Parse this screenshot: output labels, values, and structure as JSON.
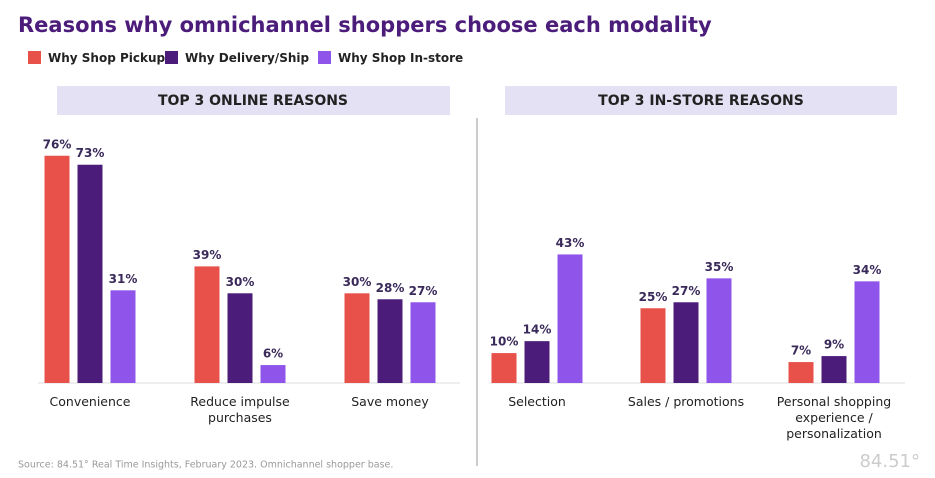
{
  "chart_data": {
    "type": "bar",
    "title": "Reasons why omnichannel shoppers choose each modality",
    "series": [
      {
        "name": "Why Shop Pickup",
        "color": "#e8504a"
      },
      {
        "name": "Why Delivery/Ship",
        "color": "#4b1c7a"
      },
      {
        "name": "Why Shop In-store",
        "color": "#8f55ea"
      }
    ],
    "panels": [
      {
        "title": "TOP 3 ONLINE REASONS",
        "categories": [
          "Convenience",
          "Reduce impulse purchases",
          "Save money"
        ],
        "series": [
          {
            "values": [
              76,
              39,
              30
            ],
            "value_labels": [
              "76%",
              "39%",
              "30%"
            ]
          },
          {
            "values": [
              73,
              30,
              28
            ],
            "value_labels": [
              "73%",
              "30%",
              "28%"
            ]
          },
          {
            "values": [
              31,
              6,
              27
            ],
            "value_labels": [
              "31%",
              "6%",
              "27%"
            ]
          }
        ]
      },
      {
        "title": "TOP 3 IN-STORE REASONS",
        "categories": [
          "Selection",
          "Sales / promotions",
          "Personal shopping experience / personalization"
        ],
        "series": [
          {
            "values": [
              10,
              25,
              7
            ],
            "value_labels": [
              "10%",
              "25%",
              "7%"
            ]
          },
          {
            "values": [
              14,
              27,
              9
            ],
            "value_labels": [
              "14%",
              "27%",
              "9%"
            ]
          },
          {
            "values": [
              43,
              35,
              34
            ],
            "value_labels": [
              "43%",
              "35%",
              "34%"
            ]
          }
        ]
      }
    ],
    "source": "Source: 84.51° Real Time Insights, February 2023. Omnichannel shopper base.",
    "logo": "84.51°"
  }
}
